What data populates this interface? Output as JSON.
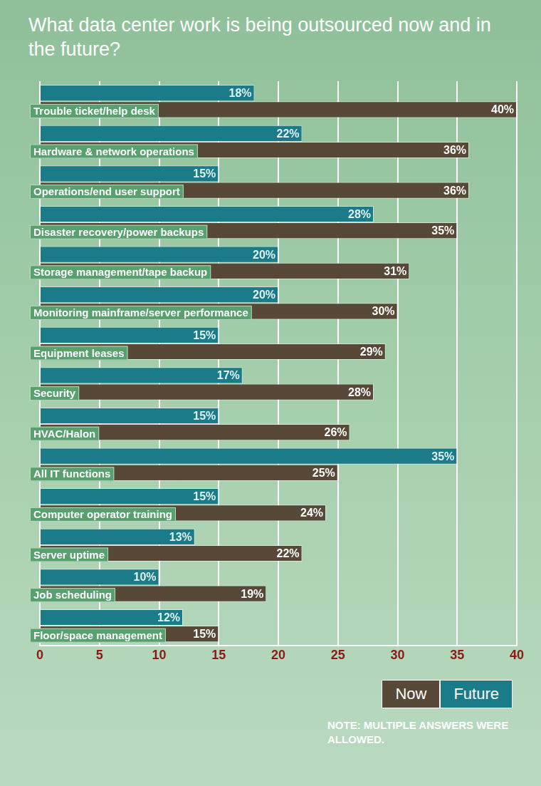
{
  "chart_data": {
    "type": "bar",
    "orientation": "horizontal",
    "title": "What data center work is being outsourced now and in the future?",
    "note": "NOTE: MULTIPLE ANSWERS WERE ALLOWED.",
    "categories": [
      "Trouble ticket/help desk",
      "Hardware & network operations",
      "Operations/end user support",
      "Disaster recovery/power backups",
      "Storage management/tape backup",
      "Monitoring mainframe/server performance",
      "Equipment leases",
      "Security",
      "HVAC/Halon",
      "All IT functions",
      "Computer operator training",
      "Server uptime",
      "Job scheduling",
      "Floor/space management"
    ],
    "series": [
      {
        "name": "Now",
        "color": "#574838",
        "values": [
          40,
          36,
          36,
          35,
          31,
          30,
          29,
          28,
          26,
          25,
          24,
          22,
          19,
          15
        ],
        "value_labels": [
          "40%",
          "36%",
          "36%",
          "35%",
          "31%",
          "30%",
          "29%",
          "28%",
          "26%",
          "25%",
          "24%",
          "22%",
          "19%",
          "15%"
        ]
      },
      {
        "name": "Future",
        "color": "#1b7b88",
        "values": [
          18,
          22,
          15,
          28,
          20,
          20,
          15,
          17,
          15,
          35,
          15,
          13,
          10,
          12
        ],
        "value_labels": [
          "18%",
          "22%",
          "15%",
          "28%",
          "20%",
          "20%",
          "15%",
          "17%",
          "15%",
          "35%",
          "15%",
          "13%",
          "10%",
          "12%"
        ]
      }
    ],
    "xlim": [
      0,
      40
    ],
    "xticks": [
      0,
      5,
      10,
      15,
      20,
      25,
      30,
      35,
      40
    ],
    "grid": true,
    "data_labels": true,
    "legend": "bottom right"
  }
}
